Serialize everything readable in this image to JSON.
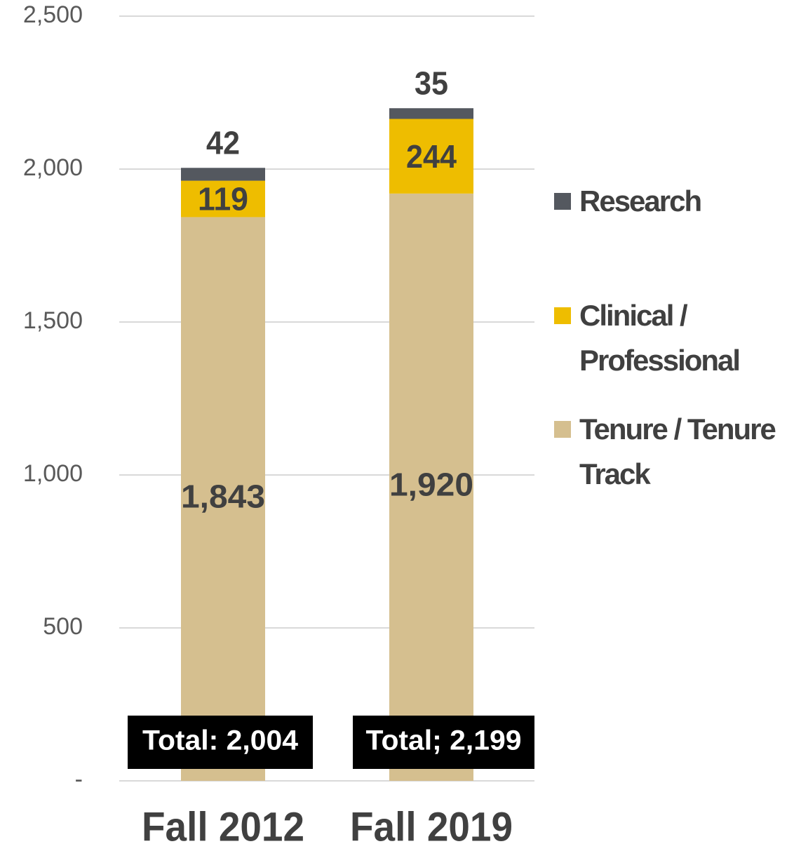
{
  "chart_data": {
    "type": "stacked_bar",
    "categories": [
      "Fall 2012",
      "Fall 2019"
    ],
    "series": [
      {
        "name": "Tenure / Tenure Track",
        "color": "#d5bf8f",
        "values": [
          1843,
          1920
        ],
        "value_labels": [
          "1,843",
          "1,920"
        ]
      },
      {
        "name": "Clinical / Professional",
        "color": "#eebd00",
        "values": [
          119,
          244
        ],
        "value_labels": [
          "119",
          "244"
        ]
      },
      {
        "name": "Research",
        "color": "#54585f",
        "values": [
          42,
          35
        ],
        "value_labels": [
          "42",
          "35"
        ]
      }
    ],
    "annotations": [
      "Total: 2,004",
      "Total; 2,199"
    ],
    "ylim": [
      0,
      2500
    ],
    "yticks": [
      {
        "value": 0,
        "label": "-"
      },
      500,
      {
        "value": 1000,
        "label": "1,000"
      },
      {
        "value": 1500,
        "label": "1,500"
      },
      {
        "value": 2000,
        "label": "2,000"
      },
      {
        "value": 2500,
        "label": "2,500"
      }
    ],
    "grid": true,
    "legend": "right"
  }
}
